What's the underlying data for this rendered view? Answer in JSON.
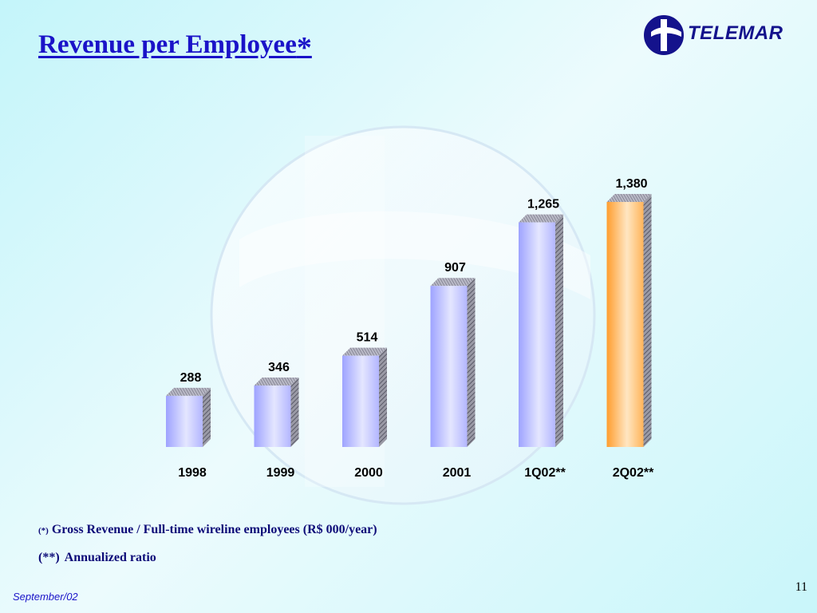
{
  "slide": {
    "title": "Revenue per Employee",
    "title_marker": "*",
    "logo_text": "TELEMAR",
    "footnotes": [
      {
        "marker": "(*)",
        "text": "Gross Revenue / Full-time wireline employees (R$ 000/year)"
      },
      {
        "marker": "(**)",
        "text": "Annualized ratio"
      }
    ],
    "footer_date": "September/02",
    "page_number": "11"
  },
  "colors": {
    "title": "#1a13c8",
    "bar_default": "#aeb2ff",
    "bar_highlight": "#ffa53a",
    "footnote": "#0d0b78",
    "logo": "#14128c"
  },
  "chart_data": {
    "type": "bar",
    "title": "",
    "xlabel": "",
    "ylabel": "",
    "categories": [
      "1998",
      "1999",
      "2000",
      "2001",
      "1Q02**",
      "2Q02**"
    ],
    "values": [
      288,
      346,
      514,
      907,
      1265,
      1380
    ],
    "value_labels": [
      "288",
      "346",
      "514",
      "907",
      "1,265",
      "1,380"
    ],
    "highlight_index": 5,
    "ylim": [
      0,
      1380
    ],
    "grid": false,
    "legend": "none"
  }
}
